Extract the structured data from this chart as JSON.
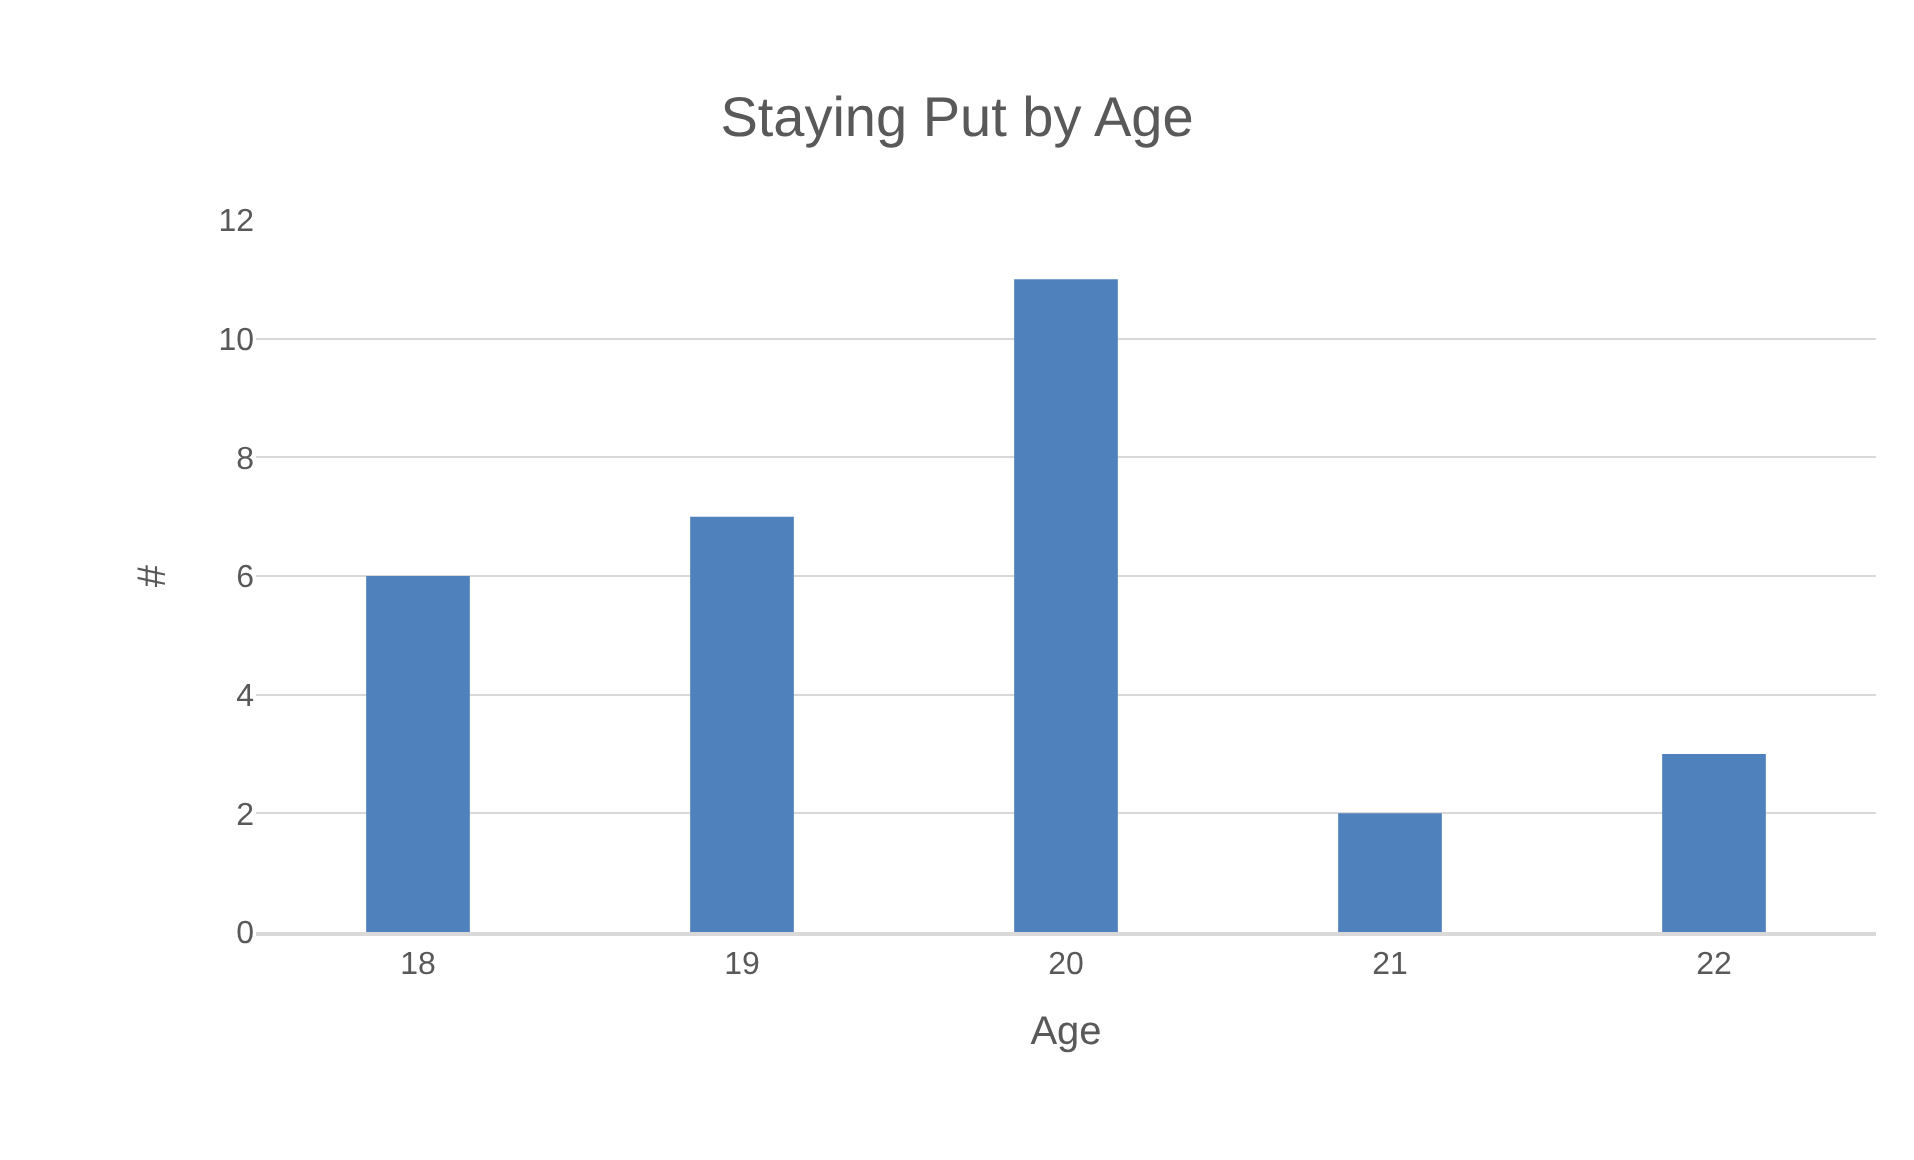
{
  "chart_data": {
    "type": "bar",
    "title": "Staying Put by Age",
    "xlabel": "Age",
    "ylabel": "#",
    "categories": [
      "18",
      "19",
      "20",
      "21",
      "22"
    ],
    "values": [
      6,
      7,
      11,
      2,
      3
    ],
    "color": "#4f81bd",
    "ylim": [
      0,
      12
    ],
    "yticks": [
      0,
      2,
      4,
      6,
      8,
      10,
      12
    ],
    "grid": "y"
  }
}
